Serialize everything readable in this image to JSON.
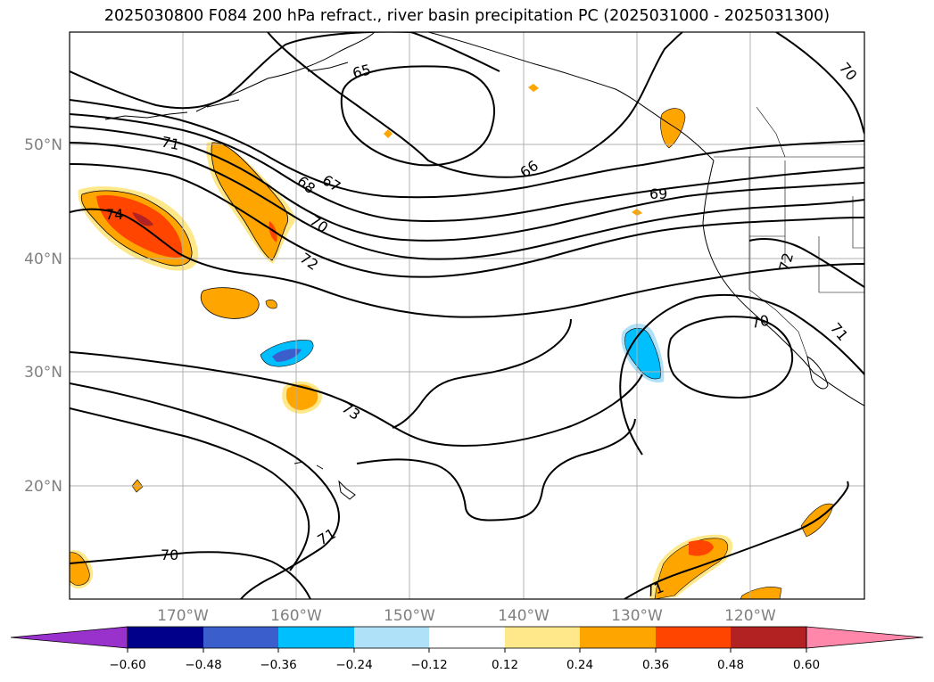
{
  "title": "2025030800 F084 200 hPa refract., river basin precipitation PC (2025031000 - 2025031300)",
  "latitude_labels": [
    "50°N",
    "40°N",
    "30°N",
    "20°N"
  ],
  "longitude_labels": [
    "170°W",
    "160°W",
    "150°W",
    "140°W",
    "130°W",
    "120°W"
  ],
  "contour_labels": [
    "65",
    "66",
    "67",
    "68",
    "69",
    "70",
    "70",
    "70",
    "70",
    "71",
    "71",
    "71",
    "71",
    "72",
    "72",
    "73",
    "74"
  ],
  "colorbar": {
    "ticks": [
      "−0.60",
      "−0.48",
      "−0.36",
      "−0.24",
      "−0.12",
      "0.12",
      "0.24",
      "0.36",
      "0.48",
      "0.60"
    ],
    "colors": [
      "#9932cc",
      "#00008b",
      "#3a5fcd",
      "#00bfff",
      "#afe1f9",
      "#ffffff",
      "#ffe88a",
      "#ffa500",
      "#ff4500",
      "#b22222",
      "#ff88aa"
    ]
  }
}
